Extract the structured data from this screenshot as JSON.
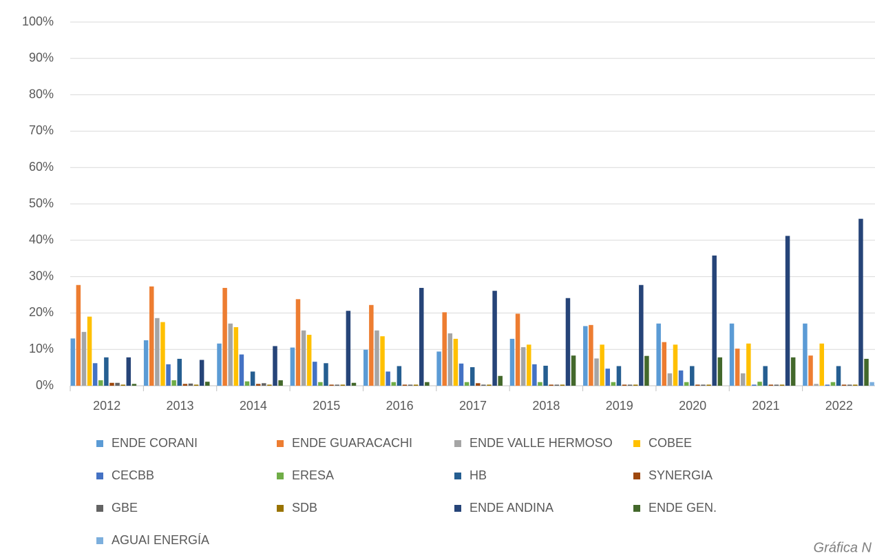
{
  "chart_data": {
    "type": "bar",
    "categories": [
      "2012",
      "2013",
      "2014",
      "2015",
      "2016",
      "2017",
      "2018",
      "2019",
      "2020",
      "2021",
      "2022"
    ],
    "series": [
      {
        "name": "ENDE CORANI",
        "color": "#5b9bd5",
        "values": [
          13,
          12.5,
          11.6,
          10.5,
          9.9,
          9.4,
          12.9,
          16.4,
          17.1,
          17.1,
          17.1
        ]
      },
      {
        "name": "ENDE GUARACACHI",
        "color": "#ed7d31",
        "values": [
          27.7,
          27.3,
          26.9,
          23.8,
          22.2,
          20.2,
          19.8,
          16.7,
          12,
          10.2,
          8.3
        ]
      },
      {
        "name": "ENDE VALLE HERMOSO",
        "color": "#a5a5a5",
        "values": [
          14.8,
          18.6,
          17.1,
          15.2,
          15.2,
          14.4,
          10.6,
          7.5,
          3.4,
          3.4,
          0.5
        ]
      },
      {
        "name": "COBEE",
        "color": "#ffc000",
        "values": [
          19,
          17.5,
          16.1,
          14,
          13.6,
          12.9,
          11.3,
          11.3,
          11.3,
          11.6,
          11.6
        ]
      },
      {
        "name": "CECBB",
        "color": "#4472c4",
        "values": [
          6.2,
          5.9,
          8.6,
          6.6,
          3.9,
          6.1,
          5.9,
          4.7,
          4.2,
          0.3,
          0.3
        ]
      },
      {
        "name": "ERESA",
        "color": "#70ad47",
        "values": [
          1.5,
          1.5,
          1.2,
          1,
          1,
          1,
          1,
          1,
          1,
          1.1,
          1
        ]
      },
      {
        "name": "HB",
        "color": "#255e91",
        "values": [
          7.8,
          7.4,
          3.9,
          6.2,
          5.4,
          5.1,
          5.5,
          5.4,
          5.4,
          5.4,
          5.4
        ]
      },
      {
        "name": "SYNERGIA",
        "color": "#9e480e",
        "values": [
          0.8,
          0.5,
          0.5,
          0.3,
          0.3,
          0.7,
          0.3,
          0.3,
          0.3,
          0.3,
          0.3
        ]
      },
      {
        "name": "GBE",
        "color": "#636363",
        "values": [
          0.8,
          0.6,
          0.7,
          0.3,
          0.3,
          0.3,
          0.3,
          0.3,
          0.3,
          0.3,
          0.3
        ]
      },
      {
        "name": "SDB",
        "color": "#997300",
        "values": [
          0.3,
          0.3,
          0.3,
          0.3,
          0.3,
          0.3,
          0.3,
          0.3,
          0.3,
          0.3,
          0.3
        ]
      },
      {
        "name": "ENDE ANDINA",
        "color": "#264478",
        "values": [
          7.8,
          7.1,
          10.9,
          20.6,
          26.9,
          26.1,
          24.1,
          27.7,
          35.8,
          41.2,
          45.9
        ]
      },
      {
        "name": "ENDE GEN.",
        "color": "#43682b",
        "values": [
          0.5,
          1.1,
          1.5,
          0.8,
          1,
          2.7,
          8.3,
          8.2,
          7.8,
          7.8,
          7.4
        ]
      },
      {
        "name": "AGUAI ENERGÍA",
        "color": "#7cafdd",
        "values": [
          0,
          0,
          0,
          0,
          0,
          0,
          0,
          0,
          0,
          0,
          1
        ]
      }
    ],
    "ylim": [
      0,
      100
    ],
    "yticks": [
      {
        "value": 0,
        "label": "0%"
      },
      {
        "value": 10,
        "label": "10%"
      },
      {
        "value": 20,
        "label": "20%"
      },
      {
        "value": 30,
        "label": "30%"
      },
      {
        "value": 40,
        "label": "40%"
      },
      {
        "value": 50,
        "label": "50%"
      },
      {
        "value": 60,
        "label": "60%"
      },
      {
        "value": 70,
        "label": "70%"
      },
      {
        "value": 80,
        "label": "80%"
      },
      {
        "value": 90,
        "label": "90%"
      },
      {
        "value": 100,
        "label": "100%"
      }
    ],
    "grid": true,
    "legend": "bottom",
    "caption": "Gráfica N"
  }
}
